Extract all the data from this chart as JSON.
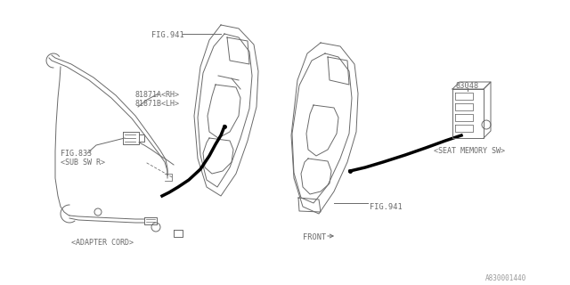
{
  "bg_color": "#ffffff",
  "line_color": "#6a6a6a",
  "text_color": "#6a6a6a",
  "bold_color": "#000000",
  "fig_width": 6.4,
  "fig_height": 3.2,
  "dpi": 100,
  "watermark": "A830001440",
  "labels": {
    "fig941_top": "FIG.941",
    "part_81871a": "81871A<RH>",
    "part_81871b": "81871B<LH>",
    "fig833": "FIG.833",
    "sub_sw": "<SUB SW R>",
    "adapter_cord": "<ADAPTER CORD>",
    "fig941_bottom": "FIG.941",
    "front": "FRONT",
    "part_83048": "83048",
    "seat_memory": "<SEAT MEMORY SW>"
  }
}
